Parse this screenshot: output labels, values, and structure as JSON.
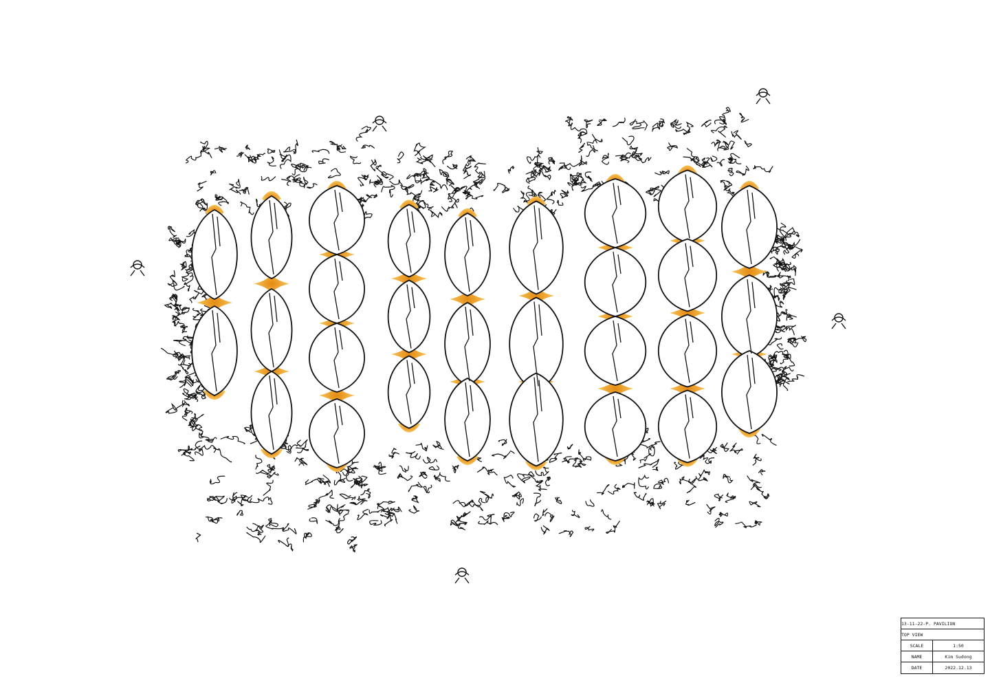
{
  "drawing": {
    "subject": "pavilion-top-view",
    "colors": {
      "line": "#111111",
      "accent": "#f0a020",
      "paper": "#ffffff"
    }
  },
  "title_block": {
    "project": "13-11-22-P. PAVILION",
    "view": "TOP VIEW",
    "rows": [
      {
        "label": "SCALE",
        "value": "1:50"
      },
      {
        "label": "NAME",
        "value": "Kim Sudong"
      },
      {
        "label": "DATE",
        "value": "2022.12.13"
      }
    ]
  }
}
